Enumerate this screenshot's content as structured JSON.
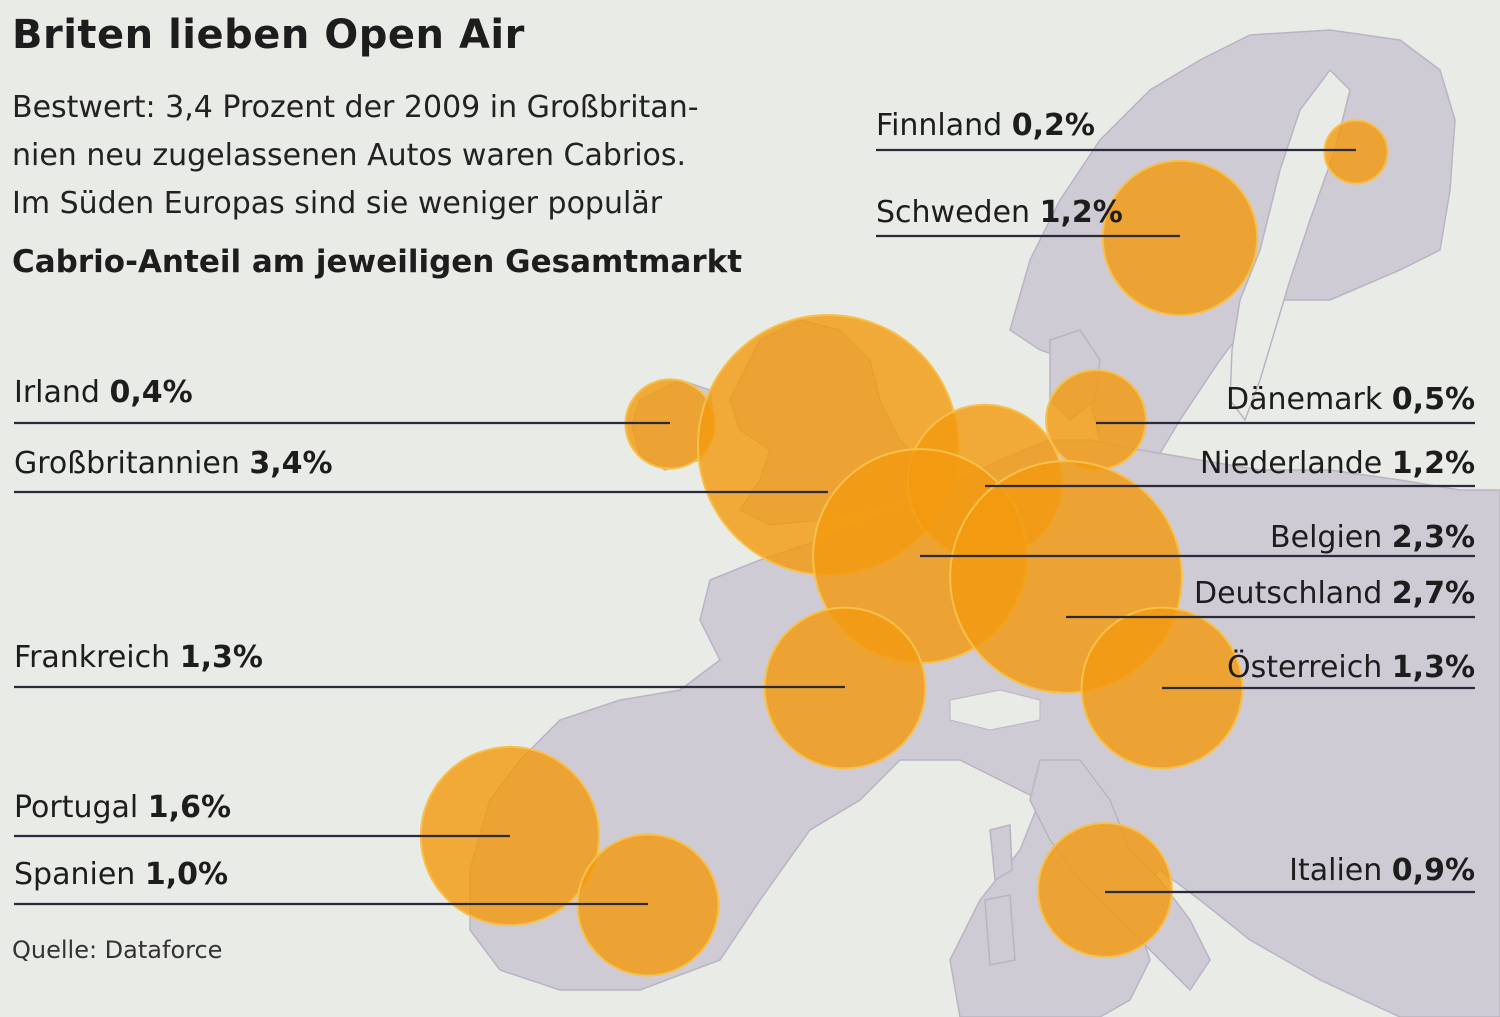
{
  "title": "Briten lieben Open Air",
  "subtitle_lines": [
    "Bestwert: 3,4 Prozent der 2009 in Großbritan-",
    "nien neu zugelassenen Autos waren Cabrios.",
    "Im Süden Europas sind sie weniger populär"
  ],
  "chart_label": "Cabrio-Anteil am jeweiligen Gesamtmarkt",
  "source": "Quelle: Dataforce",
  "colors": {
    "bubble": "#f39a10",
    "bubble_edge": "#f7c04a",
    "land": "#cfcbd5",
    "sea": "#e9ebe7",
    "line": "#2a2a3a"
  },
  "chart_data": {
    "type": "bubble-map",
    "unit": "%",
    "countries": [
      {
        "name": "Finnland",
        "value": 0.2,
        "value_label": "0,2%"
      },
      {
        "name": "Schweden",
        "value": 1.2,
        "value_label": "1,2%"
      },
      {
        "name": "Irland",
        "value": 0.4,
        "value_label": "0,4%"
      },
      {
        "name": "Dänemark",
        "value": 0.5,
        "value_label": "0,5%"
      },
      {
        "name": "Großbritannien",
        "value": 3.4,
        "value_label": "3,4%"
      },
      {
        "name": "Niederlande",
        "value": 1.2,
        "value_label": "1,2%"
      },
      {
        "name": "Belgien",
        "value": 2.3,
        "value_label": "2,3%"
      },
      {
        "name": "Deutschland",
        "value": 2.7,
        "value_label": "2,7%"
      },
      {
        "name": "Frankreich",
        "value": 1.3,
        "value_label": "1,3%"
      },
      {
        "name": "Österreich",
        "value": 1.3,
        "value_label": "1,3%"
      },
      {
        "name": "Portugal",
        "value": 1.6,
        "value_label": "1,6%"
      },
      {
        "name": "Spanien",
        "value": 1.0,
        "value_label": "1,0%"
      },
      {
        "name": "Italien",
        "value": 0.9,
        "value_label": "0,9%"
      }
    ]
  }
}
